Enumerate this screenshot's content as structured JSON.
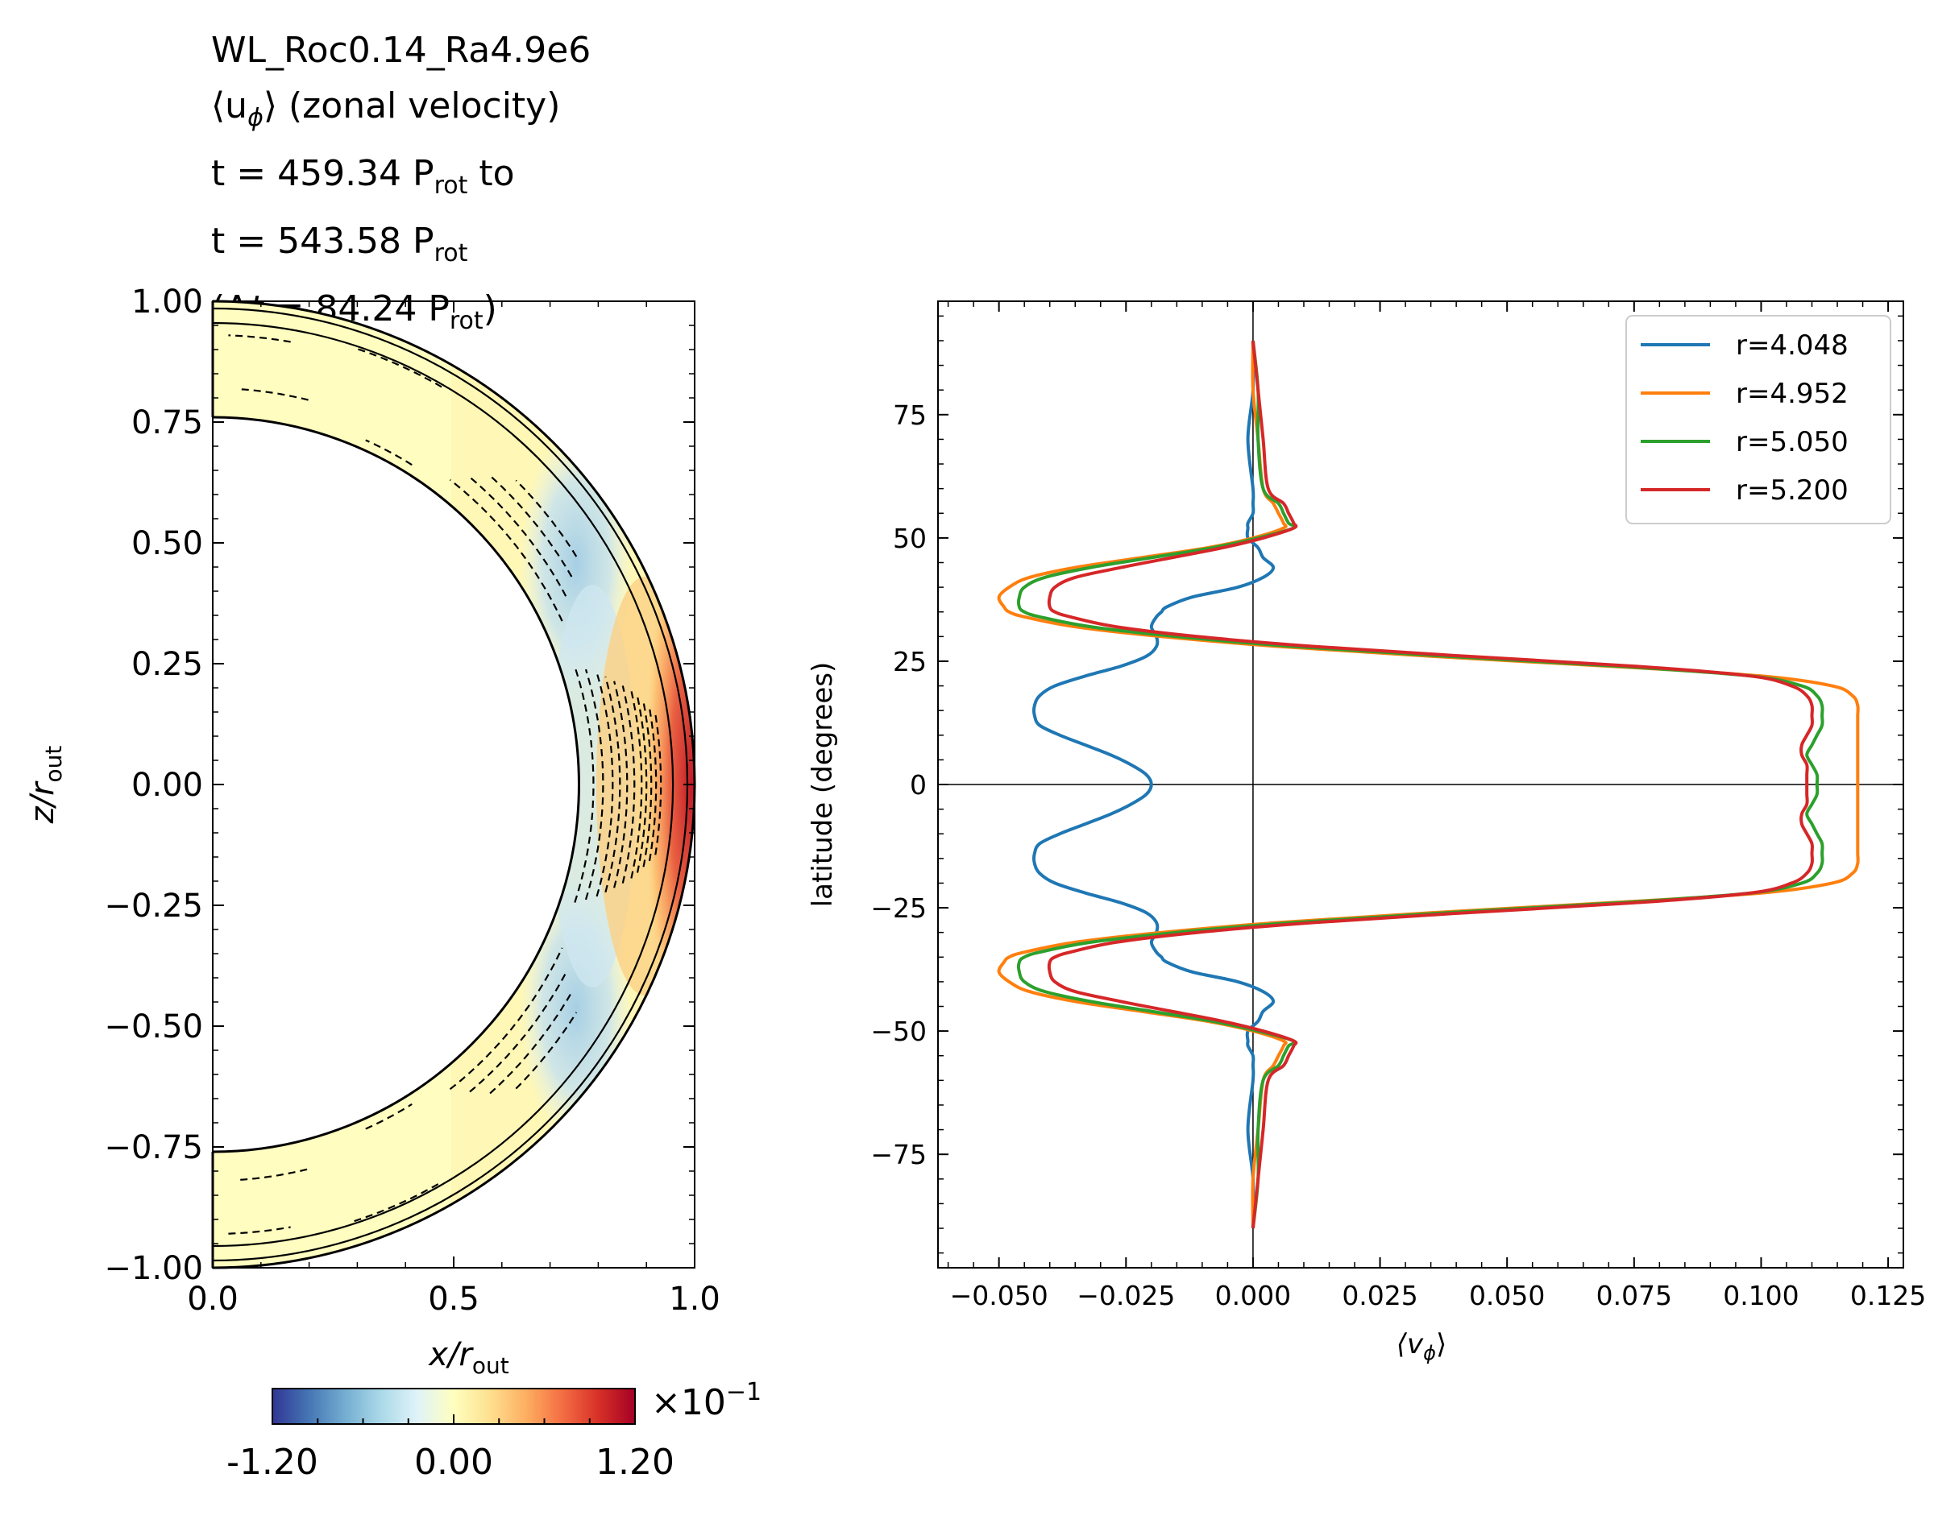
{
  "title_lines": {
    "run": "WL_Roc0.14_Ra4.9e6",
    "quantity": "⟨u",
    "quantity_sub": "ϕ",
    "quantity_rest": "⟩ (zonal velocity)",
    "t_start_prefix": "t = 459.34 P",
    "t_start_sub": "rot",
    "t_start_suffix": " to",
    "t_end_prefix": "t = 543.58 P",
    "t_end_sub": "rot",
    "dt_prefix": "(Δ",
    "dt_t": "t",
    "dt_mid": " = 84.24 P",
    "dt_sub": "rot",
    "dt_suffix": ")"
  },
  "colors": {
    "r=4.048": "#1f77b4",
    "r=4.952": "#ff7f0e",
    "r=5.050": "#2ca02c",
    "r=5.200": "#d62728"
  },
  "chart_data": [
    {
      "type": "heatmap",
      "description_kind": "meridional slice",
      "xlabel_main": "x/r",
      "xlabel_sub": "out",
      "ylabel_main": "z/r",
      "ylabel_sub": "out",
      "xlim": [
        0.0,
        1.0
      ],
      "ylim": [
        -1.0,
        1.0
      ],
      "x_ticks": [
        "0.0",
        "0.5",
        "1.0"
      ],
      "y_ticks": [
        "1.00",
        "0.75",
        "0.50",
        "0.25",
        "0.00",
        "−0.25",
        "−0.50",
        "−0.75",
        "−1.00"
      ],
      "y_tick_values": [
        1.0,
        0.75,
        0.5,
        0.25,
        0.0,
        -0.25,
        -0.5,
        -0.75,
        -1.0
      ],
      "x_tick_values": [
        0.0,
        0.5,
        1.0
      ],
      "inner_radius": 0.76,
      "outer_radius": 1.0,
      "colormap": "RdYlBu_r",
      "colorbar": {
        "min_label": "-1.20",
        "mid_label": "0.00",
        "max_label": "1.20",
        "scale_label": "×10",
        "scale_exp": "−1",
        "range": [
          -0.12,
          0.12
        ]
      }
    },
    {
      "type": "line",
      "xlabel_main": "⟨v",
      "xlabel_sub": "ϕ",
      "xlabel_close": "⟩",
      "ylabel": "latitude (degrees)",
      "xlim": [
        -0.062,
        0.128
      ],
      "ylim": [
        -98,
        98
      ],
      "x_ticks": [
        "−0.050",
        "−0.025",
        "0.000",
        "0.025",
        "0.050",
        "0.075",
        "0.100",
        "0.125"
      ],
      "x_tick_values": [
        -0.05,
        -0.025,
        0.0,
        0.025,
        0.05,
        0.075,
        0.1,
        0.125
      ],
      "y_ticks": [
        "75",
        "50",
        "25",
        "0",
        "−25",
        "−50",
        "−75"
      ],
      "y_tick_values": [
        75,
        50,
        25,
        0,
        -25,
        -50,
        -75
      ],
      "legend_position": "top-right",
      "latitudes": [
        90,
        80,
        70,
        60,
        57,
        55,
        53,
        52,
        50,
        48,
        46,
        44,
        42,
        40,
        38,
        36,
        35,
        34,
        32,
        30,
        28,
        26,
        24,
        22,
        20,
        18,
        16,
        14,
        12,
        10,
        8,
        6,
        4,
        2,
        0
      ],
      "series": [
        {
          "name": "r=4.048",
          "values": [
            0.0,
            0.0,
            -0.001,
            0.0,
            0.0,
            0.0,
            -0.001,
            -0.001,
            -0.001,
            0.001,
            0.002,
            0.004,
            0.002,
            -0.003,
            -0.012,
            -0.017,
            -0.018,
            -0.019,
            -0.02,
            -0.019,
            -0.019,
            -0.021,
            -0.026,
            -0.033,
            -0.039,
            -0.042,
            -0.043,
            -0.043,
            -0.042,
            -0.038,
            -0.033,
            -0.028,
            -0.024,
            -0.021,
            -0.02
          ]
        },
        {
          "name": "r=4.952",
          "values": [
            0.0,
            0.0,
            0.001,
            0.002,
            0.004,
            0.005,
            0.006,
            0.006,
            0.0,
            -0.009,
            -0.022,
            -0.035,
            -0.044,
            -0.048,
            -0.05,
            -0.049,
            -0.048,
            -0.045,
            -0.035,
            -0.018,
            0.005,
            0.035,
            0.07,
            0.1,
            0.114,
            0.118,
            0.119,
            0.119,
            0.119,
            0.119,
            0.119,
            0.119,
            0.119,
            0.119,
            0.119
          ]
        },
        {
          "name": "r=5.050",
          "values": [
            0.0,
            0.001,
            0.001,
            0.002,
            0.005,
            0.006,
            0.007,
            0.008,
            0.001,
            -0.008,
            -0.02,
            -0.032,
            -0.041,
            -0.045,
            -0.046,
            -0.046,
            -0.045,
            -0.042,
            -0.032,
            -0.015,
            0.008,
            0.038,
            0.072,
            0.098,
            0.108,
            0.111,
            0.112,
            0.112,
            0.112,
            0.111,
            0.11,
            0.109,
            0.11,
            0.111,
            0.111
          ]
        },
        {
          "name": "r=5.200",
          "values": [
            0.0,
            0.001,
            0.002,
            0.003,
            0.006,
            0.007,
            0.008,
            0.008,
            0.002,
            -0.006,
            -0.016,
            -0.026,
            -0.035,
            -0.039,
            -0.04,
            -0.04,
            -0.039,
            -0.036,
            -0.027,
            -0.011,
            0.012,
            0.042,
            0.075,
            0.098,
            0.106,
            0.109,
            0.11,
            0.11,
            0.11,
            0.109,
            0.108,
            0.108,
            0.109,
            0.109,
            0.109
          ]
        }
      ]
    }
  ]
}
